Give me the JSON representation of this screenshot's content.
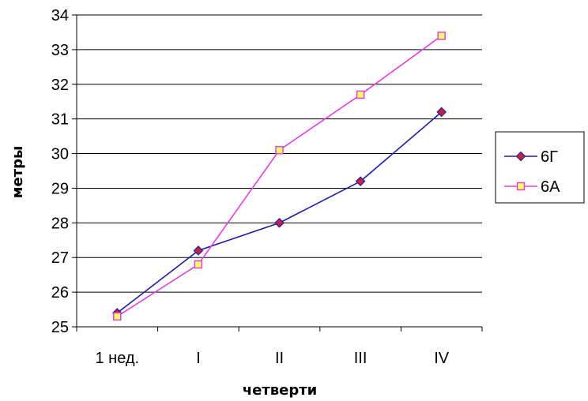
{
  "chart_data": {
    "type": "line",
    "categories": [
      "1 нед.",
      "I",
      "II",
      "III",
      "IV"
    ],
    "series": [
      {
        "name": "6Г",
        "values": [
          25.4,
          27.2,
          28.0,
          29.2,
          31.2
        ],
        "color": "#1f1fa6",
        "marker_fill": "#cc1f3a",
        "marker": "diamond"
      },
      {
        "name": "6А",
        "values": [
          25.3,
          26.8,
          30.1,
          31.7,
          33.4
        ],
        "color": "#e040e0",
        "marker_fill": "#ffff66",
        "marker": "square"
      }
    ],
    "xlabel": "четверти",
    "ylabel": "метры",
    "ylim": [
      25,
      34
    ],
    "yticks": [
      "25",
      "26",
      "27",
      "28",
      "29",
      "30",
      "31",
      "32",
      "33",
      "34"
    ],
    "grid": true,
    "legend_position": "right"
  }
}
